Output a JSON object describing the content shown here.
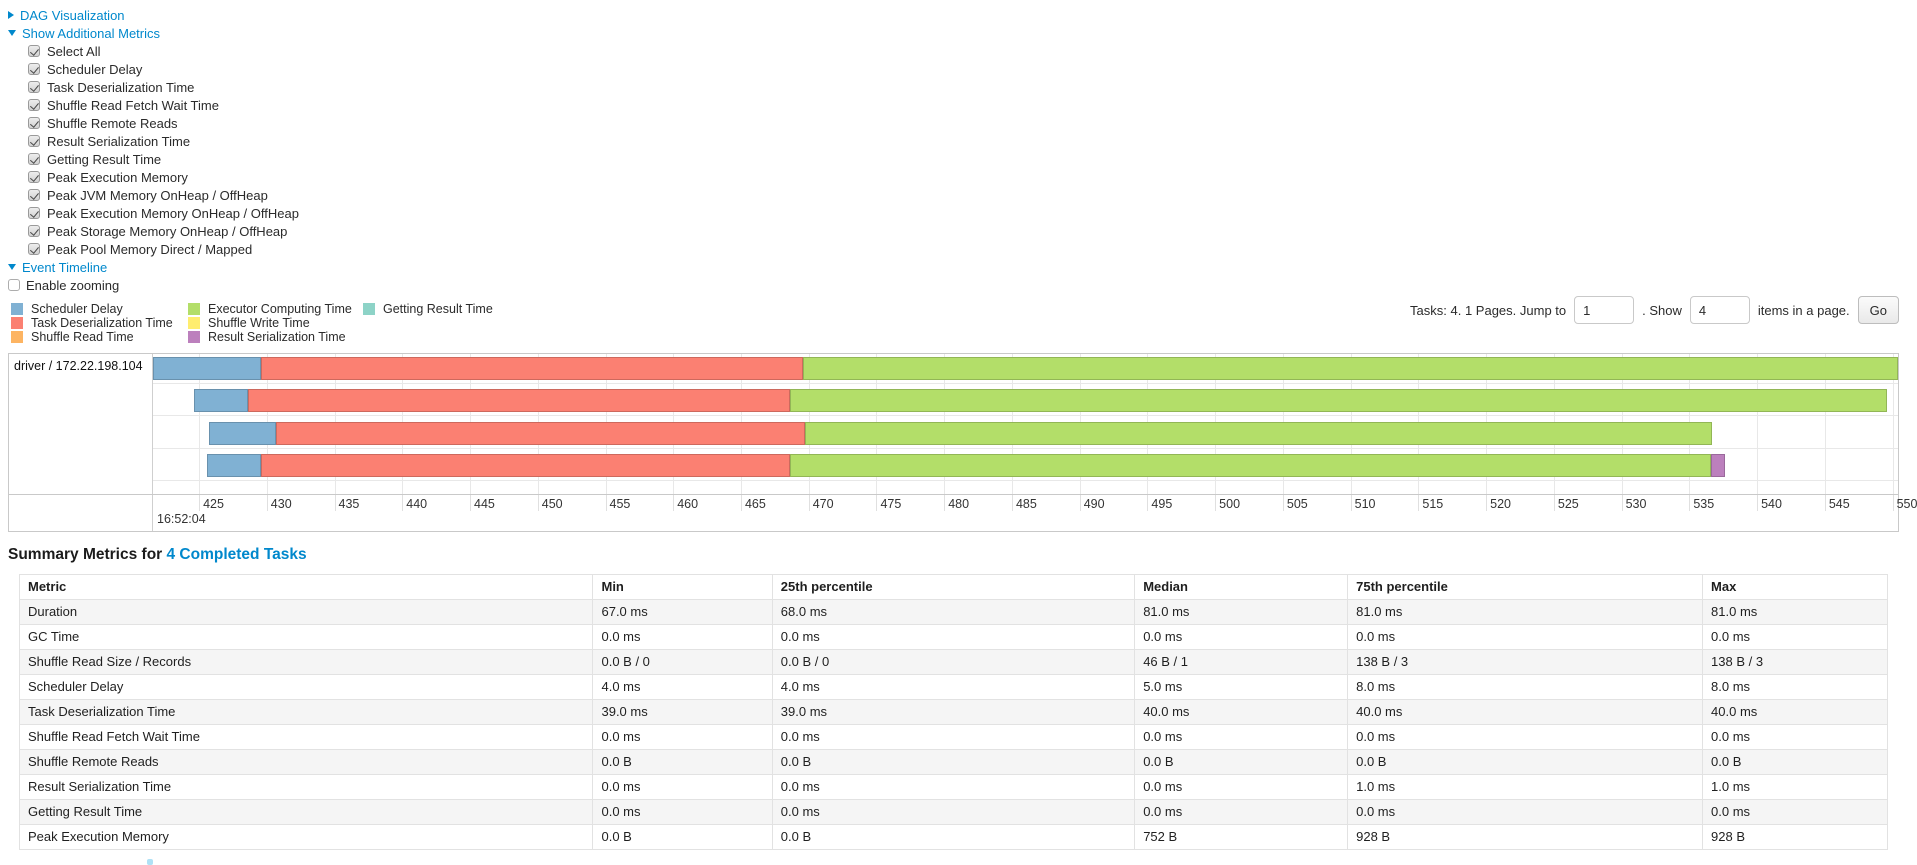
{
  "colors": {
    "link": "#0088cc",
    "scheduler_delay": "#80B1D3",
    "task_deserialization": "#FB8072",
    "shuffle_read": "#FDB462",
    "executor_computing": "#B3DE69",
    "shuffle_write": "#FFED6F",
    "result_serialization": "#BC80BD",
    "getting_result": "#8DD3C7"
  },
  "sections": {
    "dag": "DAG Visualization",
    "metrics_toggle": "Show Additional Metrics",
    "event_timeline": "Event Timeline"
  },
  "metric_checkboxes": [
    {
      "label": "Select All",
      "checked": true
    },
    {
      "label": "Scheduler Delay",
      "checked": true
    },
    {
      "label": "Task Deserialization Time",
      "checked": true
    },
    {
      "label": "Shuffle Read Fetch Wait Time",
      "checked": true
    },
    {
      "label": "Shuffle Remote Reads",
      "checked": true
    },
    {
      "label": "Result Serialization Time",
      "checked": true
    },
    {
      "label": "Getting Result Time",
      "checked": true
    },
    {
      "label": "Peak Execution Memory",
      "checked": true
    },
    {
      "label": "Peak JVM Memory OnHeap / OffHeap",
      "checked": true
    },
    {
      "label": "Peak Execution Memory OnHeap / OffHeap",
      "checked": true
    },
    {
      "label": "Peak Storage Memory OnHeap / OffHeap",
      "checked": true
    },
    {
      "label": "Peak Pool Memory Direct / Mapped",
      "checked": true
    }
  ],
  "enable_zooming": {
    "label": "Enable zooming",
    "checked": false
  },
  "legend": {
    "columns": [
      [
        {
          "label": "Scheduler Delay",
          "color": "scheduler_delay"
        },
        {
          "label": "Task Deserialization Time",
          "color": "task_deserialization"
        },
        {
          "label": "Shuffle Read Time",
          "color": "shuffle_read"
        }
      ],
      [
        {
          "label": "Executor Computing Time",
          "color": "executor_computing"
        },
        {
          "label": "Shuffle Write Time",
          "color": "shuffle_write"
        },
        {
          "label": "Result Serialization Time",
          "color": "result_serialization"
        }
      ],
      [
        {
          "label": "Getting Result Time",
          "color": "getting_result"
        }
      ]
    ]
  },
  "pagination": {
    "tasks_info": "Tasks: 4. 1 Pages. Jump to",
    "jump_value": "1",
    "show_label": ". Show",
    "show_value": "4",
    "items_label": "items in a page.",
    "go_label": "Go"
  },
  "chart_data": {
    "type": "timeline",
    "group_label": "driver / 172.22.198.104",
    "axis": {
      "min": 421.6,
      "max": 550.4,
      "unit": "ms",
      "ticks": [
        425,
        430,
        435,
        440,
        445,
        450,
        455,
        460,
        465,
        470,
        475,
        480,
        485,
        490,
        495,
        500,
        505,
        510,
        515,
        520,
        525,
        530,
        535,
        540,
        545,
        550
      ],
      "time_label": "16:52:04"
    },
    "tasks": [
      {
        "segments": [
          {
            "metric": "scheduler_delay",
            "start": 421.6,
            "end": 429.6
          },
          {
            "metric": "task_deserialization",
            "start": 429.6,
            "end": 469.6
          },
          {
            "metric": "executor_computing",
            "start": 469.6,
            "end": 550.6
          }
        ]
      },
      {
        "segments": [
          {
            "metric": "scheduler_delay",
            "start": 424.6,
            "end": 428.6
          },
          {
            "metric": "task_deserialization",
            "start": 428.6,
            "end": 468.6
          },
          {
            "metric": "executor_computing",
            "start": 468.6,
            "end": 549.6
          }
        ]
      },
      {
        "segments": [
          {
            "metric": "scheduler_delay",
            "start": 425.7,
            "end": 430.7
          },
          {
            "metric": "task_deserialization",
            "start": 430.7,
            "end": 469.7
          },
          {
            "metric": "executor_computing",
            "start": 469.7,
            "end": 536.7
          }
        ]
      },
      {
        "segments": [
          {
            "metric": "scheduler_delay",
            "start": 425.6,
            "end": 429.6
          },
          {
            "metric": "task_deserialization",
            "start": 429.6,
            "end": 468.6
          },
          {
            "metric": "executor_computing",
            "start": 468.6,
            "end": 536.6
          },
          {
            "metric": "result_serialization",
            "start": 536.6,
            "end": 537.6
          }
        ]
      }
    ]
  },
  "summary": {
    "title_prefix": "Summary Metrics for ",
    "title_link": "4 Completed Tasks",
    "table": {
      "headers": [
        "Metric",
        "Min",
        "25th percentile",
        "Median",
        "75th percentile",
        "Max"
      ],
      "col_widths_pct": [
        30.7,
        9.6,
        19.4,
        11.4,
        19.0,
        9.9
      ],
      "rows": [
        [
          "Duration",
          "67.0 ms",
          "68.0 ms",
          "81.0 ms",
          "81.0 ms",
          "81.0 ms"
        ],
        [
          "GC Time",
          "0.0 ms",
          "0.0 ms",
          "0.0 ms",
          "0.0 ms",
          "0.0 ms"
        ],
        [
          "Shuffle Read Size / Records",
          "0.0 B / 0",
          "0.0 B / 0",
          "46 B / 1",
          "138 B / 3",
          "138 B / 3"
        ],
        [
          "Scheduler Delay",
          "4.0 ms",
          "4.0 ms",
          "5.0 ms",
          "8.0 ms",
          "8.0 ms"
        ],
        [
          "Task Deserialization Time",
          "39.0 ms",
          "39.0 ms",
          "40.0 ms",
          "40.0 ms",
          "40.0 ms"
        ],
        [
          "Shuffle Read Fetch Wait Time",
          "0.0 ms",
          "0.0 ms",
          "0.0 ms",
          "0.0 ms",
          "0.0 ms"
        ],
        [
          "Shuffle Remote Reads",
          "0.0 B",
          "0.0 B",
          "0.0 B",
          "0.0 B",
          "0.0 B"
        ],
        [
          "Result Serialization Time",
          "0.0 ms",
          "0.0 ms",
          "0.0 ms",
          "1.0 ms",
          "1.0 ms"
        ],
        [
          "Getting Result Time",
          "0.0 ms",
          "0.0 ms",
          "0.0 ms",
          "0.0 ms",
          "0.0 ms"
        ],
        [
          "Peak Execution Memory",
          "0.0 B",
          "0.0 B",
          "752 B",
          "928 B",
          "928 B"
        ]
      ]
    }
  }
}
